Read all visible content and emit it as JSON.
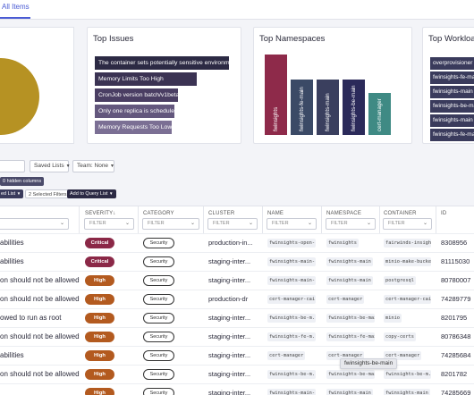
{
  "tabs": {
    "active": "All Items"
  },
  "cards": {
    "issues": {
      "title": "Top Issues",
      "bars": [
        {
          "label": "The container sets potentially sensitive environment variables",
          "color": "#2c2a44",
          "value": 100
        },
        {
          "label": "Memory Limits Too High",
          "color": "#3b3353",
          "value": 76
        },
        {
          "label": "CronJob version batch/v1beta1",
          "color": "#4a3e63",
          "value": 62
        },
        {
          "label": "Only one replica is scheduled",
          "color": "#63577d",
          "value": 59
        },
        {
          "label": "Memory Requests Too Low",
          "color": "#7b6f94",
          "value": 57
        }
      ]
    },
    "namespaces": {
      "title": "Top Namespaces",
      "bars": [
        {
          "label": "fwinsights",
          "color": "#8e2a4a",
          "value": 100
        },
        {
          "label": "fwinsights-fe-main",
          "color": "#3b4a66",
          "value": 69
        },
        {
          "label": "fwinsights-main",
          "color": "#3a3f5e",
          "value": 69
        },
        {
          "label": "fwinsights-be-main",
          "color": "#2b2a5a",
          "value": 69
        },
        {
          "label": "cert-manager",
          "color": "#3f8a84",
          "value": 52
        }
      ]
    },
    "workloads": {
      "title": "Top Workloads",
      "bars": [
        {
          "label": "overprovisioner"
        },
        {
          "label": "fwinsights-fe-main"
        },
        {
          "label": "fwinsights-main"
        },
        {
          "label": "fwinsights-be-main"
        },
        {
          "label": "fwinsights-main"
        },
        {
          "label": "fwinsights-fe-main"
        }
      ]
    }
  },
  "controls": {
    "saved_lists": "Saved Lists",
    "team": "Team: None",
    "hidden_columns": "0 hidden columns",
    "list_button": "ed List",
    "selected_filters": "2 Selected Filters",
    "add_to_query": "Add to Query List"
  },
  "table": {
    "columns": {
      "severity": "SEVERITY",
      "category": "CATEGORY",
      "cluster": "CLUSTER",
      "name": "NAME",
      "namespace": "NAMESPACE",
      "container": "CONTAINER",
      "id": "ID"
    },
    "filter_placeholder": "FILTER",
    "rows": [
      {
        "title": "abilities",
        "severity": "Critical",
        "sev_color": "#8b2847",
        "category": "Security",
        "cluster": "production-in...",
        "name": "fwinsights-open-...",
        "namespace": "fwinsights",
        "container": "fairwinds-insight...",
        "id": "8308956"
      },
      {
        "title": "abilities",
        "severity": "Critical",
        "sev_color": "#8b2847",
        "category": "Security",
        "cluster": "staging-inter...",
        "name": "fwinsights-main-...",
        "namespace": "fwinsights-main",
        "container": "minio-make-bucke...",
        "id": "81115030"
      },
      {
        "title": "on should not be allowed",
        "severity": "High",
        "sev_color": "#b35a1f",
        "category": "Security",
        "cluster": "staging-inter...",
        "name": "fwinsights-main-...",
        "namespace": "fwinsights-main",
        "container": "postgresql",
        "id": "80780007"
      },
      {
        "title": "on should not be allowed",
        "severity": "High",
        "sev_color": "#b35a1f",
        "category": "Security",
        "cluster": "production-dr",
        "name": "cert-manager-cai...",
        "namespace": "cert-manager",
        "container": "cert-manager-cai...",
        "id": "74289779"
      },
      {
        "title": "owed to run as root",
        "severity": "High",
        "sev_color": "#b35a1f",
        "category": "Security",
        "cluster": "staging-inter...",
        "name": "fwinsights-be-m...",
        "namespace": "fwinsights-be-main",
        "container": "minio",
        "id": "8201795"
      },
      {
        "title": "on should not be allowed",
        "severity": "High",
        "sev_color": "#b35a1f",
        "category": "Security",
        "cluster": "staging-inter...",
        "name": "fwinsights-fe-m...",
        "namespace": "fwinsights-fe-main",
        "container": "copy-certs",
        "id": "80786348"
      },
      {
        "title": "abilities",
        "severity": "High",
        "sev_color": "#b35a1f",
        "category": "Security",
        "cluster": "staging-inter...",
        "name": "cert-manager",
        "namespace": "cert-manager",
        "container": "cert-manager",
        "id": "74285684"
      },
      {
        "title": "on should not be allowed",
        "severity": "High",
        "sev_color": "#b35a1f",
        "category": "Security",
        "cluster": "staging-inter...",
        "name": "fwinsights-be-m...",
        "namespace": "fwinsights-be-main",
        "container": "fwinsights-be-m...",
        "id": "8201782"
      },
      {
        "title": "",
        "severity": "High",
        "sev_color": "#b35a1f",
        "category": "Security",
        "cluster": "staging-inter...",
        "name": "fwinsights-main-...",
        "namespace": "fwinsights-main",
        "container": "fwinsights-main",
        "id": "74285669"
      }
    ]
  },
  "tooltip": "fwinsights-be-main",
  "colors": {
    "accent": "#4a5bd4",
    "pie": "#b69223",
    "workload_bar": "#3a3b5c"
  }
}
